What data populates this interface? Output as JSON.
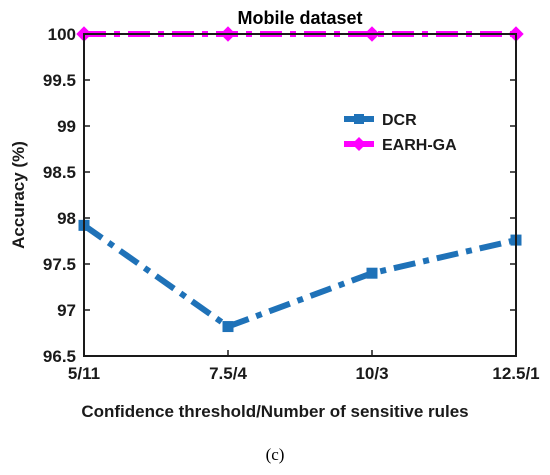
{
  "chart_data": {
    "type": "line",
    "title": "Mobile dataset",
    "xlabel": "Confidence threshold/Number of sensitive rules",
    "ylabel": "Accuracy (%)",
    "categories": [
      "5/11",
      "7.5/4",
      "10/3",
      "12.5/1"
    ],
    "ylim": [
      96.5,
      100
    ],
    "yticks": [
      "96.5",
      "97",
      "97.5",
      "98",
      "98.5",
      "99",
      "99.5",
      "100"
    ],
    "series": [
      {
        "name": "DCR",
        "values": [
          97.92,
          96.82,
          97.4,
          97.76
        ],
        "color": "#1f72b8",
        "marker": "square"
      },
      {
        "name": "EARH-GA",
        "values": [
          100,
          100,
          100,
          100
        ],
        "color": "#ff00ff",
        "marker": "diamond"
      }
    ],
    "legend_position": "upper-right inside",
    "caption": "(c)"
  }
}
